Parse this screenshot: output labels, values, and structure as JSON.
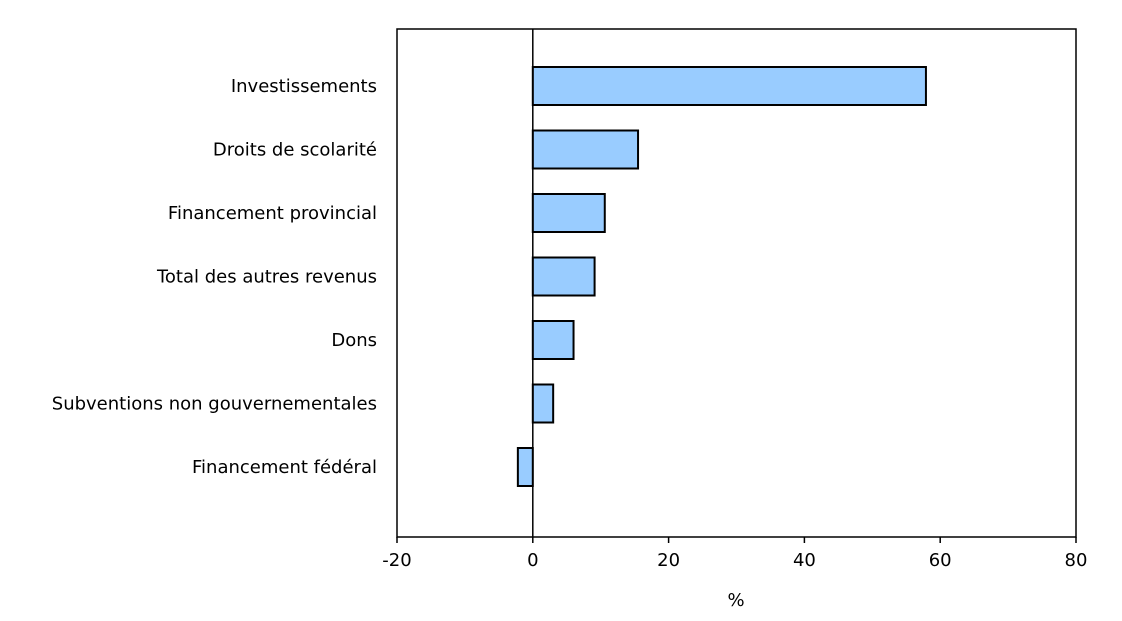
{
  "chart_data": {
    "type": "bar",
    "orientation": "horizontal",
    "title": "",
    "xlabel": "%",
    "ylabel": "",
    "xlim": [
      -20,
      80
    ],
    "xticks": [
      -20,
      0,
      20,
      40,
      60,
      80
    ],
    "grid": false,
    "categories": [
      "Investissements",
      "Droits de scolarité",
      "Financement provincial",
      "Total des autres revenus",
      "Dons",
      "Subventions non gouvernementales",
      "Financement fédéral"
    ],
    "values": [
      57.9,
      15.5,
      10.6,
      9.1,
      6.0,
      3.0,
      -2.2
    ],
    "colors": {
      "bar_fill": "#99ccff",
      "bar_stroke": "#000000"
    }
  }
}
